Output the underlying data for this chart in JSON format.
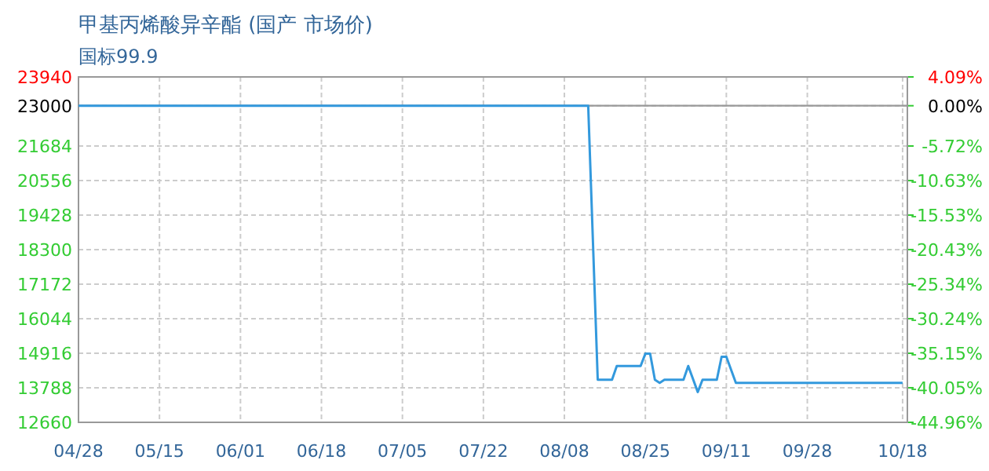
{
  "chart_data": {
    "type": "line",
    "title": "甲基丙烯酸异辛酯 (国产 市场价)",
    "subtitle": "国标99.9",
    "x": [
      "--04-28",
      "--08-13",
      "--08-15",
      "--08-18",
      "--08-19",
      "--08-24",
      "--08-25",
      "--08-26",
      "--08-27",
      "--08-28",
      "--08-29",
      "--09-02",
      "--09-03",
      "--09-05",
      "--09-06",
      "--09-09",
      "--09-10",
      "--09-11",
      "--09-13",
      "--10-18"
    ],
    "series": [
      {
        "color": "#3399dd",
        "values": [
          23000,
          23000,
          14050,
          14050,
          14500,
          14500,
          14900,
          14900,
          14050,
          13950,
          14050,
          14050,
          14500,
          13650,
          14050,
          14050,
          14800,
          14800,
          13950,
          13950
        ]
      }
    ],
    "xlim": [
      "--04-28",
      "--10-19"
    ],
    "xticks": [
      {
        "value": "--04-28",
        "label": "04/28"
      },
      {
        "value": "--05-15",
        "label": "05/15"
      },
      {
        "value": "--06-01",
        "label": "06/01"
      },
      {
        "value": "--06-18",
        "label": "06/18"
      },
      {
        "value": "--07-05",
        "label": "07/05"
      },
      {
        "value": "--07-22",
        "label": "07/22"
      },
      {
        "value": "--08-08",
        "label": "08/08"
      },
      {
        "value": "--08-25",
        "label": "08/25"
      },
      {
        "value": "--09-11",
        "label": "09/11"
      },
      {
        "value": "--09-28",
        "label": "09/28"
      },
      {
        "value": "--10-18",
        "label": "10/18"
      }
    ],
    "ylim": [
      12660,
      23940
    ],
    "yticks": [
      12660,
      13788,
      14916,
      16044,
      17172,
      18300,
      19428,
      20556,
      21684,
      23000,
      23940
    ],
    "y2lim": [
      -44.96,
      4.09
    ],
    "y2ticks": [
      {
        "value": -44.96,
        "label": "-44.96%"
      },
      {
        "value": -40.05,
        "label": "-40.05%"
      },
      {
        "value": -35.15,
        "label": "-35.15%"
      },
      {
        "value": -30.24,
        "label": "-30.24%"
      },
      {
        "value": -25.34,
        "label": "-25.34%"
      },
      {
        "value": -20.43,
        "label": "-20.43%"
      },
      {
        "value": -15.53,
        "label": "-15.53%"
      },
      {
        "value": -10.63,
        "label": "-10.63%"
      },
      {
        "value": -5.72,
        "label": "-5.72%"
      },
      {
        "value": 0,
        "label": "0.00%"
      },
      {
        "value": 4.09,
        "label": "4.09%"
      }
    ],
    "ref_lines": [
      {
        "axis": "y",
        "value": 23000,
        "color": "#999999"
      }
    ],
    "grid": true
  }
}
